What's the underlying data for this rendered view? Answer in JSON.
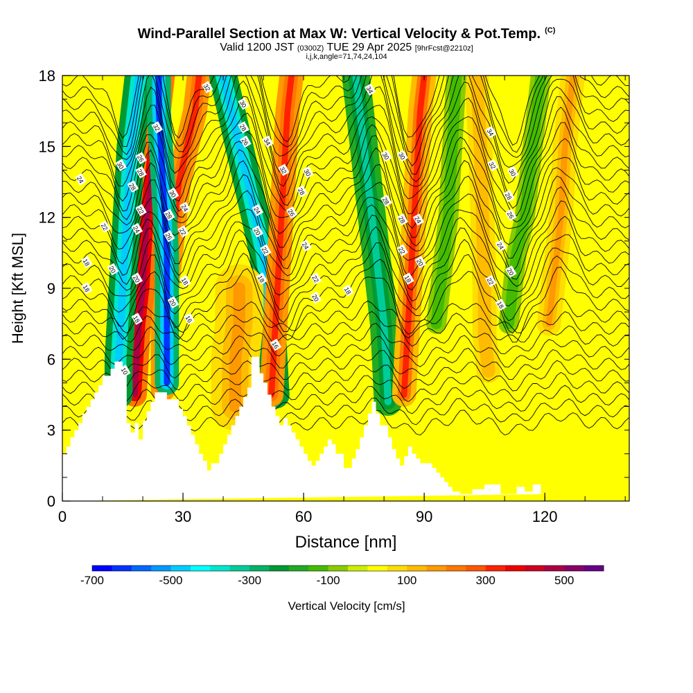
{
  "title": {
    "main": "Wind-Parallel Section at Max W: Vertical Velocity & Pot.Temp.",
    "main_note": "(C)",
    "subtitle_valid": "Valid 1200 JST",
    "subtitle_zulu": "(0300Z)",
    "subtitle_date": "TUE 29 Apr 2025",
    "subtitle_fcst": "[9hrFcst@2210z]",
    "indices": "i,j,k,angle=71,74,24,104"
  },
  "chart_data": {
    "type": "heatmap",
    "xlabel": "Distance [nm]",
    "ylabel": "Height [Kft MSL]",
    "xlim": [
      0,
      141
    ],
    "ylim": [
      0,
      18
    ],
    "x_ticks": [
      "0",
      "30",
      "60",
      "90",
      "120"
    ],
    "y_ticks": [
      "0",
      "3",
      "6",
      "9",
      "12",
      "15",
      "18"
    ],
    "x_tick_values": [
      0,
      30,
      60,
      90,
      120
    ],
    "y_tick_values": [
      0,
      3,
      6,
      9,
      12,
      15,
      18
    ],
    "colorbar": {
      "label": "Vertical Velocity [cm/s]",
      "tick_labels": [
        "-700",
        "-500",
        "-300",
        "-100",
        "100",
        "300",
        "500"
      ],
      "tick_values": [
        -700,
        -500,
        -300,
        -100,
        100,
        300,
        500
      ],
      "range": [
        -700,
        600
      ],
      "colors": [
        "#0000ff",
        "#0033ff",
        "#0066ff",
        "#0099ff",
        "#00ccff",
        "#00ffff",
        "#00e6cc",
        "#00cc99",
        "#00b366",
        "#009933",
        "#22aa22",
        "#44bb00",
        "#88cc00",
        "#ccee00",
        "#ffff00",
        "#ffdd00",
        "#ffbb00",
        "#ff9900",
        "#ff7700",
        "#ff5500",
        "#ff2200",
        "#ee0000",
        "#cc0022",
        "#aa0044",
        "#880066",
        "#660088"
      ]
    },
    "terrain": {
      "x_nm": [
        0,
        1,
        1,
        2,
        2,
        3,
        3,
        4,
        4,
        5,
        5,
        6,
        6,
        7,
        7,
        8,
        8,
        9,
        9,
        10,
        10,
        12,
        12,
        13,
        13,
        15,
        15,
        16,
        16,
        17,
        17,
        18,
        18,
        19,
        19,
        20,
        20,
        21,
        21,
        22,
        22,
        23,
        23,
        26,
        26,
        29,
        29,
        30,
        30,
        31,
        31,
        32,
        32,
        33,
        33,
        34,
        34,
        35,
        35,
        36,
        36,
        37,
        37,
        39,
        39,
        40,
        40,
        41,
        41,
        42,
        42,
        43,
        43,
        44,
        44,
        45,
        45,
        46,
        46,
        47,
        47,
        49,
        49,
        50,
        50,
        51,
        51,
        52,
        52,
        53,
        53,
        54,
        54,
        55,
        55,
        56,
        56,
        57,
        57,
        58,
        58,
        59,
        59,
        60,
        60,
        61,
        61,
        62,
        62,
        63,
        63,
        64,
        64,
        65,
        65,
        66,
        66,
        67,
        67,
        68,
        68,
        70,
        70,
        72,
        72,
        73,
        73,
        74,
        74,
        75,
        75,
        76,
        76,
        77,
        77,
        78,
        78,
        79,
        79,
        81,
        81,
        82,
        82,
        83,
        83,
        84,
        84,
        85,
        85,
        86,
        86,
        87,
        87,
        88,
        88,
        89,
        89,
        92,
        92,
        93,
        93,
        94,
        94,
        95,
        95,
        96,
        96,
        97,
        97,
        99,
        99,
        102,
        102,
        105,
        105,
        109,
        109,
        113,
        113,
        115,
        115,
        117,
        117,
        119,
        119,
        122,
        122,
        125,
        125,
        128,
        128,
        132,
        132,
        135,
        135,
        141
      ],
      "height_kft": [
        2.0,
        2.0,
        2.3,
        2.3,
        2.7,
        2.7,
        3.0,
        3.0,
        3.3,
        3.3,
        3.7,
        3.7,
        4.0,
        4.0,
        4.3,
        4.3,
        4.6,
        4.6,
        4.9,
        4.9,
        5.3,
        5.3,
        5.6,
        5.6,
        5.9,
        5.9,
        5.5,
        5.5,
        3.3,
        3.3,
        2.9,
        2.9,
        3.3,
        3.3,
        2.6,
        2.6,
        3.4,
        3.4,
        3.8,
        3.8,
        4.2,
        4.2,
        4.6,
        4.6,
        4.3,
        4.3,
        3.9,
        3.9,
        3.6,
        3.6,
        3.2,
        3.2,
        2.8,
        2.8,
        2.4,
        2.4,
        2.0,
        2.0,
        1.7,
        1.7,
        1.3,
        1.3,
        1.6,
        1.6,
        2.0,
        2.0,
        2.4,
        2.4,
        2.8,
        2.8,
        3.2,
        3.2,
        3.6,
        3.6,
        4.0,
        4.0,
        4.4,
        4.4,
        4.8,
        4.8,
        6.1,
        6.1,
        5.4,
        5.4,
        5.0,
        5.0,
        4.5,
        4.5,
        4.0,
        4.0,
        3.6,
        3.6,
        3.2,
        3.2,
        3.5,
        3.5,
        3.2,
        3.2,
        2.9,
        2.9,
        2.6,
        2.6,
        2.3,
        2.3,
        2.0,
        2.0,
        1.7,
        1.7,
        1.5,
        1.5,
        1.7,
        1.7,
        2.0,
        2.0,
        2.3,
        2.3,
        2.6,
        2.6,
        2.4,
        2.4,
        2.0,
        2.0,
        1.4,
        1.4,
        1.8,
        1.8,
        2.2,
        2.2,
        2.7,
        2.7,
        3.2,
        3.2,
        3.7,
        3.7,
        4.2,
        4.2,
        3.7,
        3.7,
        3.2,
        3.2,
        2.7,
        2.7,
        2.2,
        2.2,
        1.8,
        1.8,
        1.5,
        1.5,
        1.9,
        1.9,
        2.3,
        2.3,
        2.0,
        2.0,
        1.8,
        1.8,
        1.6,
        1.6,
        1.4,
        1.4,
        1.2,
        1.2,
        1.0,
        1.0,
        0.8,
        0.8,
        0.6,
        0.6,
        0.4,
        0.4,
        0.3,
        0.3,
        0.5,
        0.5,
        0.7,
        0.7,
        0.3,
        0.3,
        0.6,
        0.6,
        0.4,
        0.4,
        0.7,
        0.7,
        0.3,
        0.3,
        0.3
      ]
    },
    "w_features": [
      {
        "kind": "up",
        "x_nm": [
          34,
          33,
          31,
          29,
          28,
          27,
          26,
          25,
          25,
          25
        ],
        "y_kft": [
          18,
          16.5,
          15,
          13.5,
          12,
          10.5,
          9,
          7.5,
          6,
          4.7
        ],
        "w_cms": 330,
        "width_nm": 3
      },
      {
        "kind": "up",
        "x_nm": [
          25,
          24,
          23,
          22,
          21,
          20.5,
          20,
          19,
          18.5,
          18
        ],
        "y_kft": [
          18,
          16.5,
          15,
          13.5,
          12,
          10.5,
          9,
          7.5,
          6,
          4.5
        ],
        "w_cms": 480,
        "width_nm": 3
      },
      {
        "kind": "down",
        "x_nm": [
          19,
          18,
          17,
          16.5,
          16,
          15.5,
          15,
          14.5,
          14,
          14
        ],
        "y_kft": [
          18,
          16.5,
          15,
          13.5,
          12,
          10.5,
          9,
          7.5,
          6,
          4.5
        ],
        "w_cms": -500,
        "width_nm": 3.5
      },
      {
        "kind": "down",
        "x_nm": [
          24,
          24,
          24.5,
          25,
          25.5,
          26,
          26,
          26,
          26,
          26
        ],
        "y_kft": [
          18,
          16.5,
          15,
          13.5,
          12,
          10.5,
          9,
          7.5,
          6,
          5
        ],
        "w_cms": -650,
        "width_nm": 3
      },
      {
        "kind": "down",
        "x_nm": [
          40,
          42,
          44,
          46,
          48,
          50,
          51,
          52,
          52.5,
          53
        ],
        "y_kft": [
          18,
          16.5,
          15,
          13.5,
          12,
          10.5,
          9,
          7.5,
          6,
          4.5
        ],
        "w_cms": -500,
        "width_nm": 3.5
      },
      {
        "kind": "up",
        "x_nm": [
          57,
          56,
          55.5,
          55,
          54.5,
          54,
          53.5,
          53,
          52.5,
          52
        ],
        "y_kft": [
          18,
          16.5,
          15,
          13.5,
          12,
          10.5,
          9,
          7.5,
          6,
          4.5
        ],
        "w_cms": 330,
        "width_nm": 3
      },
      {
        "kind": "down",
        "x_nm": [
          73,
          74,
          75,
          76,
          77,
          78,
          79,
          80,
          80.5,
          81
        ],
        "y_kft": [
          18,
          16.5,
          15,
          13.5,
          12,
          10.5,
          9,
          7.5,
          6,
          4.2
        ],
        "w_cms": -320,
        "width_nm": 3.5
      },
      {
        "kind": "up",
        "x_nm": [
          90,
          89,
          88.5,
          88,
          87.5,
          87,
          86.5,
          86,
          85.5,
          85
        ],
        "y_kft": [
          18,
          16.5,
          15,
          13.5,
          12,
          10.5,
          9,
          7.5,
          6,
          4.5
        ],
        "w_cms": 300,
        "width_nm": 3
      },
      {
        "kind": "up",
        "x_nm": [
          44,
          44,
          43,
          43,
          43
        ],
        "y_kft": [
          9,
          7.5,
          6,
          5,
          4
        ],
        "w_cms": 150,
        "width_nm": 6
      },
      {
        "kind": "up",
        "x_nm": [
          103,
          104,
          104.5,
          105,
          105,
          106
        ],
        "y_kft": [
          18,
          15,
          12,
          9,
          7,
          5.5
        ],
        "w_cms": 120,
        "width_nm": 3
      },
      {
        "kind": "down",
        "x_nm": [
          119,
          117,
          115,
          113,
          112,
          111
        ],
        "y_kft": [
          18,
          15,
          12,
          10.5,
          9,
          7.5
        ],
        "w_cms": -120,
        "width_nm": 2.5
      },
      {
        "kind": "up",
        "x_nm": [
          127,
          125,
          124,
          123,
          122,
          121
        ],
        "y_kft": [
          18,
          15,
          12,
          10.5,
          9,
          7.5
        ],
        "w_cms": 150,
        "width_nm": 3
      },
      {
        "kind": "down",
        "x_nm": [
          98,
          97,
          96,
          95,
          94,
          93
        ],
        "y_kft": [
          18,
          15,
          12,
          10.5,
          9,
          7.5
        ],
        "w_cms": -120,
        "width_nm": 2.5
      }
    ],
    "theta_contours": {
      "units": "C",
      "levels_base_kft": [
        3.3,
        3.8,
        4.3,
        4.8,
        5.3,
        5.8,
        6.3,
        6.8,
        7.3,
        7.8,
        8.3,
        8.8,
        9.3,
        9.8,
        10.3,
        10.8,
        11.3,
        11.8,
        12.3,
        12.8,
        13.3,
        13.8,
        14.3,
        14.8,
        15.3,
        15.8,
        16.3,
        16.8,
        17.3,
        17.8
      ]
    },
    "contour_labels": [
      {
        "text": "24",
        "x": 4.5,
        "y": 13.6
      },
      {
        "text": "18",
        "x": 6,
        "y": 10.1
      },
      {
        "text": "18",
        "x": 6,
        "y": 9.0
      },
      {
        "text": "26",
        "x": 19.5,
        "y": 14.5
      },
      {
        "text": "30",
        "x": 14.5,
        "y": 14.2
      },
      {
        "text": "22",
        "x": 10.5,
        "y": 11.6
      },
      {
        "text": "20",
        "x": 12.5,
        "y": 9.8
      },
      {
        "text": "28",
        "x": 17.5,
        "y": 13.3
      },
      {
        "text": "28",
        "x": 19.5,
        "y": 13.9
      },
      {
        "text": "22",
        "x": 19.5,
        "y": 12.3
      },
      {
        "text": "24",
        "x": 18.5,
        "y": 11.5
      },
      {
        "text": "20",
        "x": 18.5,
        "y": 9.4
      },
      {
        "text": "18",
        "x": 18.5,
        "y": 7.7
      },
      {
        "text": "10",
        "x": 15.5,
        "y": 5.5
      },
      {
        "text": "32",
        "x": 23.5,
        "y": 15.8
      },
      {
        "text": "30",
        "x": 27.5,
        "y": 13.0
      },
      {
        "text": "28",
        "x": 26.5,
        "y": 12.1
      },
      {
        "text": "26",
        "x": 26.5,
        "y": 11.2
      },
      {
        "text": "24",
        "x": 30.5,
        "y": 12.4
      },
      {
        "text": "22",
        "x": 30,
        "y": 11.4
      },
      {
        "text": "18",
        "x": 30.5,
        "y": 9.3
      },
      {
        "text": "20",
        "x": 27.5,
        "y": 8.4
      },
      {
        "text": "16",
        "x": 31.5,
        "y": 7.7
      },
      {
        "text": "32",
        "x": 36,
        "y": 17.5
      },
      {
        "text": "30",
        "x": 45,
        "y": 16.8
      },
      {
        "text": "28",
        "x": 45,
        "y": 15.8
      },
      {
        "text": "26",
        "x": 45.5,
        "y": 15.2
      },
      {
        "text": "34",
        "x": 51,
        "y": 15.2
      },
      {
        "text": "32",
        "x": 55,
        "y": 14.0
      },
      {
        "text": "30",
        "x": 61,
        "y": 13.9
      },
      {
        "text": "28",
        "x": 59.5,
        "y": 13.1
      },
      {
        "text": "26",
        "x": 57,
        "y": 12.2
      },
      {
        "text": "24",
        "x": 48.5,
        "y": 12.3
      },
      {
        "text": "20",
        "x": 48.5,
        "y": 11.4
      },
      {
        "text": "22",
        "x": 50.5,
        "y": 10.6
      },
      {
        "text": "18",
        "x": 49.5,
        "y": 9.4
      },
      {
        "text": "24",
        "x": 60.5,
        "y": 10.8
      },
      {
        "text": "22",
        "x": 63,
        "y": 9.4
      },
      {
        "text": "20",
        "x": 63,
        "y": 8.6
      },
      {
        "text": "16",
        "x": 53,
        "y": 6.6
      },
      {
        "text": "18",
        "x": 71,
        "y": 8.9
      },
      {
        "text": "34",
        "x": 76.5,
        "y": 17.4
      },
      {
        "text": "30",
        "x": 80.5,
        "y": 14.6
      },
      {
        "text": "30",
        "x": 84.5,
        "y": 14.6
      },
      {
        "text": "28",
        "x": 80.5,
        "y": 12.7
      },
      {
        "text": "28",
        "x": 84.5,
        "y": 11.9
      },
      {
        "text": "24",
        "x": 88.5,
        "y": 11.9
      },
      {
        "text": "22",
        "x": 84.5,
        "y": 10.6
      },
      {
        "text": "20",
        "x": 89,
        "y": 10.1
      },
      {
        "text": "18",
        "x": 86,
        "y": 9.4
      },
      {
        "text": "34",
        "x": 106.5,
        "y": 15.6
      },
      {
        "text": "32",
        "x": 107,
        "y": 14.2
      },
      {
        "text": "30",
        "x": 112,
        "y": 13.9
      },
      {
        "text": "28",
        "x": 111,
        "y": 12.9
      },
      {
        "text": "26",
        "x": 111.5,
        "y": 12.1
      },
      {
        "text": "24",
        "x": 109,
        "y": 10.8
      },
      {
        "text": "20",
        "x": 111.5,
        "y": 9.7
      },
      {
        "text": "22",
        "x": 106.5,
        "y": 9.3
      },
      {
        "text": "18",
        "x": 109,
        "y": 8.3
      }
    ]
  }
}
